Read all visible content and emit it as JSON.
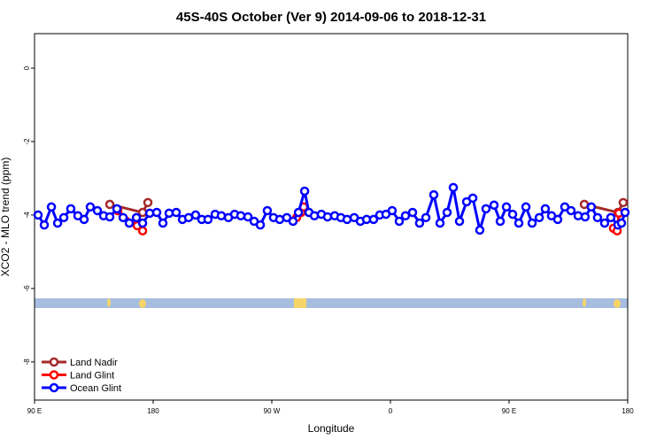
{
  "chart_data": {
    "type": "line",
    "title": "45S-40S October (Ver 9)   2014-09-06 to 2018-12-31",
    "x_label": "Longitude",
    "y_label": "XCO2 - MLO trend (ppm)",
    "xlim": [
      90,
      540
    ],
    "ylim": [
      -9.04,
      0.94
    ],
    "xticks": [
      {
        "value": 90,
        "label": "90 E"
      },
      {
        "value": 180,
        "label": "180"
      },
      {
        "value": 270,
        "label": "90 W"
      },
      {
        "value": 360,
        "label": "0"
      },
      {
        "value": 450,
        "label": "90 E"
      },
      {
        "value": 540,
        "label": "180"
      }
    ],
    "yticks": [
      0,
      -2,
      -4,
      -6,
      -8
    ],
    "legend": "bottom left",
    "series": [
      {
        "name": "Land Nadir",
        "color": "#a52a2a",
        "x": [
          147.1,
          172.0,
          176.0,
          null,
          507.1,
          532.6,
          536.6
        ],
        "values": [
          -3.71,
          -3.93,
          -3.66,
          null,
          -3.71,
          -3.93,
          -3.66
        ]
      },
      {
        "name": "Land Glint",
        "color": "#ff0000",
        "x": [
          153.1,
          167.9,
          172.0,
          null,
          288.8,
          292.2,
          294.2,
          null,
          529.2,
          532.0,
          533.3
        ],
        "values": [
          -3.88,
          -4.29,
          -4.43,
          null,
          -4.07,
          -3.93,
          -3.78,
          null,
          -4.36,
          -4.43,
          -3.95
        ]
      },
      {
        "name": "Ocean Glint",
        "color": "#0000ff",
        "x": [
          92.7,
          97.4,
          102.8,
          107.5,
          112.2,
          117.5,
          122.9,
          127.6,
          132.3,
          137.7,
          142.4,
          147.1,
          152.5,
          157.2,
          161.9,
          167.3,
          172.0,
          177.4,
          182.7,
          187.4,
          192.1,
          197.5,
          202.2,
          206.9,
          212.2,
          216.9,
          221.6,
          227.0,
          231.7,
          237.1,
          241.8,
          246.5,
          251.9,
          256.6,
          261.3,
          266.6,
          271.3,
          276.0,
          281.4,
          286.1,
          290.2,
          294.9,
          298.2,
          302.3,
          307.6,
          312.3,
          317.7,
          322.4,
          327.1,
          332.5,
          337.2,
          341.9,
          347.2,
          351.9,
          356.6,
          361.3,
          366.7,
          371.4,
          376.8,
          382.1,
          386.9,
          392.9,
          397.6,
          403.0,
          407.7,
          412.4,
          417.8,
          422.5,
          427.8,
          432.5,
          438.6,
          443.3,
          448.0,
          452.7,
          457.4,
          462.8,
          467.5,
          472.9,
          477.5,
          482.2,
          486.9,
          492.3,
          497.0,
          502.4,
          507.7,
          512.4,
          517.1,
          522.5,
          527.2,
          532.6,
          535.3,
          538.0
        ],
        "values": [
          -4.0,
          -4.27,
          -3.78,
          -4.22,
          -4.07,
          -3.83,
          -4.02,
          -4.12,
          -3.78,
          -3.88,
          -4.02,
          -4.05,
          -3.83,
          -4.07,
          -4.22,
          -4.07,
          -4.22,
          -3.95,
          -3.93,
          -4.22,
          -3.95,
          -3.93,
          -4.12,
          -4.07,
          -4.0,
          -4.12,
          -4.12,
          -3.98,
          -4.02,
          -4.07,
          -3.98,
          -4.02,
          -4.05,
          -4.17,
          -4.27,
          -3.88,
          -4.07,
          -4.12,
          -4.07,
          -4.17,
          -3.93,
          -3.35,
          -3.93,
          -4.02,
          -3.98,
          -4.05,
          -4.02,
          -4.07,
          -4.12,
          -4.07,
          -4.17,
          -4.12,
          -4.12,
          -4.0,
          -3.98,
          -3.88,
          -4.17,
          -4.02,
          -3.93,
          -4.22,
          -4.07,
          -3.45,
          -4.22,
          -3.93,
          -3.25,
          -4.17,
          -3.64,
          -3.54,
          -4.41,
          -3.83,
          -3.73,
          -4.17,
          -3.78,
          -3.98,
          -4.22,
          -3.78,
          -4.22,
          -4.07,
          -3.83,
          -4.02,
          -4.12,
          -3.78,
          -3.88,
          -4.02,
          -4.05,
          -3.78,
          -4.07,
          -4.22,
          -4.07,
          -4.27,
          -4.22,
          -3.93
        ]
      }
    ]
  }
}
